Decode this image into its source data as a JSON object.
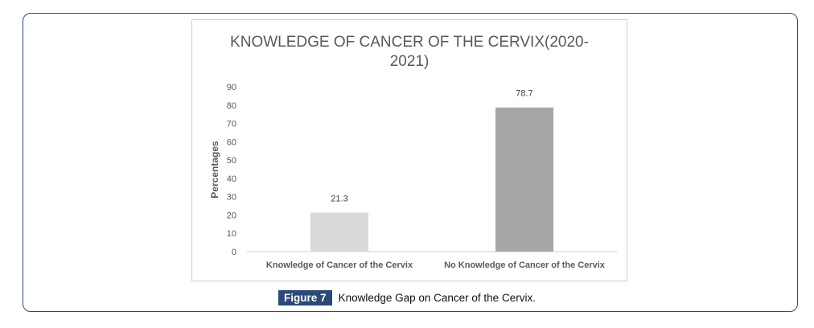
{
  "caption": {
    "figure_label": "Figure 7",
    "text": "Knowledge Gap on Cancer of the Cervix."
  },
  "chart_data": {
    "type": "bar",
    "title_lines": [
      "KNOWLEDGE OF CANCER OF THE CERVIX(2020-",
      "2021)"
    ],
    "xlabel": "",
    "ylabel": "Percentages",
    "ylim": [
      0,
      90
    ],
    "yticks": [
      "0",
      "10",
      "20",
      "30",
      "40",
      "50",
      "60",
      "70",
      "80",
      "90"
    ],
    "grid": false,
    "legend": "none",
    "categories": [
      "Knowledge of Cancer of the Cervix",
      "No Knowledge of Cancer of the Cervix"
    ],
    "values": [
      21.3,
      78.7
    ],
    "data_labels": [
      "21.3",
      "78.7"
    ],
    "colors": [
      "#d9d9d9",
      "#a6a6a6"
    ]
  }
}
